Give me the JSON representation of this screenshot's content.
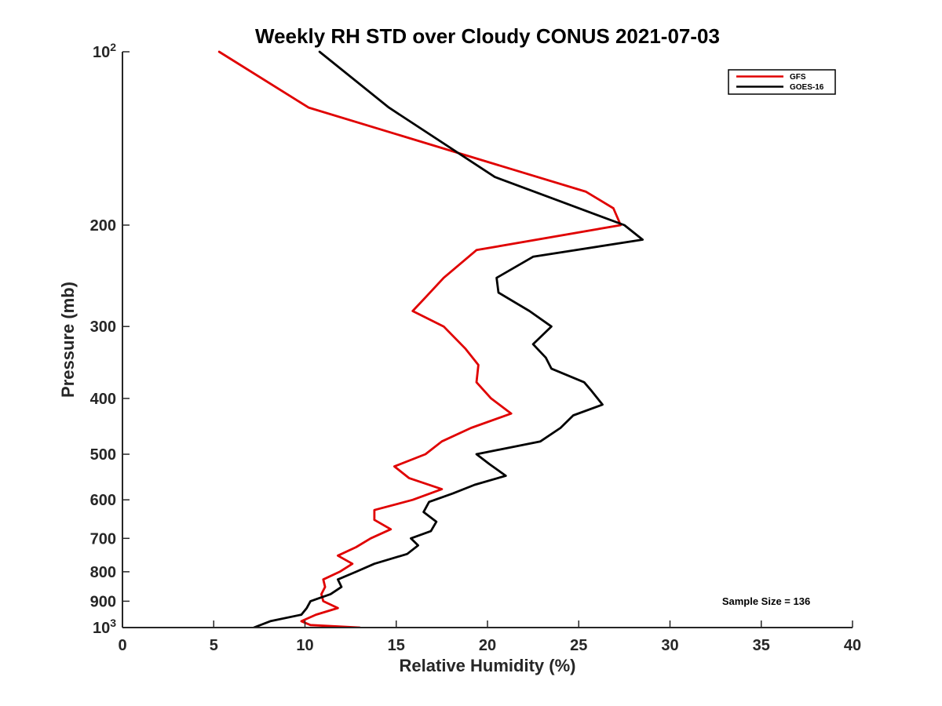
{
  "chart_data": {
    "type": "line",
    "title": "Weekly RH STD over Cloudy CONUS 2021-07-03",
    "xlabel": "Relative Humidity (%)",
    "ylabel": "Pressure (mb)",
    "xlim": [
      0,
      40
    ],
    "ylim": [
      100,
      1000
    ],
    "y_scale": "log",
    "y_reversed": true,
    "grid": false,
    "x_ticks": [
      0,
      5,
      10,
      15,
      20,
      25,
      30,
      35,
      40
    ],
    "y_ticks": [
      {
        "value": 100,
        "base": "10",
        "exp": "2"
      },
      {
        "value": 200,
        "label": "200"
      },
      {
        "value": 300,
        "label": "300"
      },
      {
        "value": 400,
        "label": "400"
      },
      {
        "value": 500,
        "label": "500"
      },
      {
        "value": 600,
        "label": "600"
      },
      {
        "value": 700,
        "label": "700"
      },
      {
        "value": 800,
        "label": "800"
      },
      {
        "value": 900,
        "label": "900"
      },
      {
        "value": 1000,
        "base": "10",
        "exp": "3"
      }
    ],
    "legend_position": "top-right",
    "annotation": "Sample Size = 136",
    "series": [
      {
        "name": "GFS",
        "color": "#e00000",
        "points": [
          [
            5.3,
            100
          ],
          [
            10.2,
            125
          ],
          [
            25.4,
            175
          ],
          [
            26.9,
            187
          ],
          [
            27.3,
            200
          ],
          [
            19.4,
            221
          ],
          [
            17.6,
            247
          ],
          [
            16.7,
            265
          ],
          [
            15.9,
            282
          ],
          [
            17.6,
            300
          ],
          [
            18.8,
            328
          ],
          [
            19.5,
            350
          ],
          [
            19.4,
            375
          ],
          [
            20.2,
            400
          ],
          [
            21.3,
            425
          ],
          [
            19.1,
            450
          ],
          [
            17.5,
            475
          ],
          [
            16.6,
            500
          ],
          [
            14.9,
            525
          ],
          [
            15.7,
            550
          ],
          [
            17.5,
            575
          ],
          [
            15.9,
            600
          ],
          [
            13.8,
            625
          ],
          [
            13.8,
            650
          ],
          [
            14.7,
            675
          ],
          [
            13.6,
            700
          ],
          [
            12.8,
            725
          ],
          [
            11.8,
            750
          ],
          [
            12.6,
            775
          ],
          [
            11.9,
            800
          ],
          [
            11.0,
            825
          ],
          [
            11.1,
            850
          ],
          [
            10.9,
            875
          ],
          [
            11.0,
            900
          ],
          [
            11.8,
            925
          ],
          [
            10.6,
            950
          ],
          [
            9.8,
            975
          ],
          [
            10.3,
            990
          ],
          [
            13.0,
            1000
          ],
          [
            12.8,
            1012
          ],
          [
            11.9,
            1030
          ]
        ]
      },
      {
        "name": "GOES-16",
        "color": "#000000",
        "points": [
          [
            10.8,
            100
          ],
          [
            14.6,
            125
          ],
          [
            20.4,
            165
          ],
          [
            27.5,
            200
          ],
          [
            28.5,
            212
          ],
          [
            22.5,
            227
          ],
          [
            20.5,
            247
          ],
          [
            20.6,
            262
          ],
          [
            22.3,
            282
          ],
          [
            23.5,
            300
          ],
          [
            22.5,
            322
          ],
          [
            23.2,
            340
          ],
          [
            23.5,
            355
          ],
          [
            25.3,
            375
          ],
          [
            25.7,
            388
          ],
          [
            26.3,
            410
          ],
          [
            24.7,
            428
          ],
          [
            24.0,
            450
          ],
          [
            22.9,
            475
          ],
          [
            19.4,
            500
          ],
          [
            20.1,
            520
          ],
          [
            21.0,
            545
          ],
          [
            19.3,
            565
          ],
          [
            18.1,
            585
          ],
          [
            16.8,
            605
          ],
          [
            16.5,
            630
          ],
          [
            17.2,
            655
          ],
          [
            16.9,
            680
          ],
          [
            15.8,
            700
          ],
          [
            16.2,
            720
          ],
          [
            15.6,
            745
          ],
          [
            13.8,
            775
          ],
          [
            12.8,
            800
          ],
          [
            11.8,
            825
          ],
          [
            12.0,
            850
          ],
          [
            11.4,
            875
          ],
          [
            10.3,
            900
          ],
          [
            10.1,
            925
          ],
          [
            9.8,
            950
          ],
          [
            8.1,
            975
          ],
          [
            7.2,
            1000
          ],
          [
            7.1,
            1025
          ]
        ]
      }
    ]
  }
}
